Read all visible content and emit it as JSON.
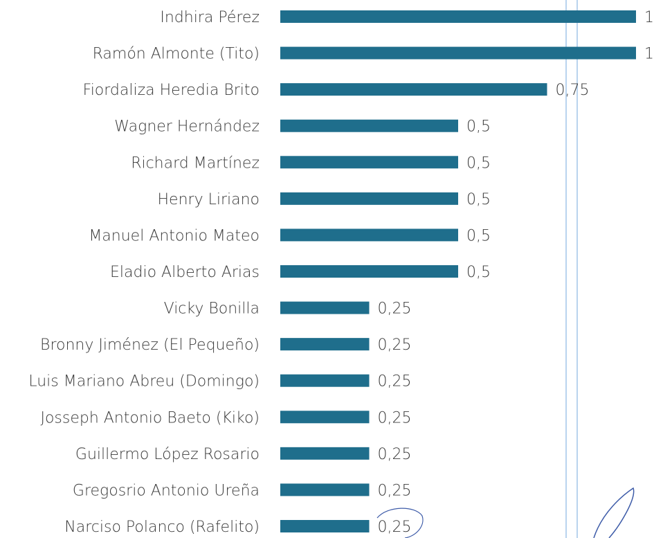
{
  "chart_data": {
    "type": "bar",
    "orientation": "horizontal",
    "color": "#1f6e8c",
    "categories": [
      "Indhira Pérez",
      "Ramón Almonte (Tito)",
      "Fiordaliza Heredia Brito",
      "Wagner Hernández",
      "Richard Martínez",
      "Henry Liriano",
      "Manuel Antonio Mateo",
      "Eladio Alberto Arias",
      "Vicky Bonilla",
      "Bronny Jiménez (El Pequeño)",
      "Luis Mariano Abreu (Domingo)",
      "Josseph Antonio Baeto (Kiko)",
      "Guillermo López Rosario",
      "Gregosrio Antonio Ureña",
      "Narciso Polanco (Rafelito)"
    ],
    "values": [
      1,
      1,
      0.75,
      0.5,
      0.5,
      0.5,
      0.5,
      0.5,
      0.25,
      0.25,
      0.25,
      0.25,
      0.25,
      0.25,
      0.25
    ],
    "value_labels": [
      "1",
      "1",
      "0,75",
      "0,5",
      "0,5",
      "0,5",
      "0,5",
      "0,5",
      "0,25",
      "0,25",
      "0,25",
      "0,25",
      "0,25",
      "0,25",
      "0,25"
    ]
  }
}
